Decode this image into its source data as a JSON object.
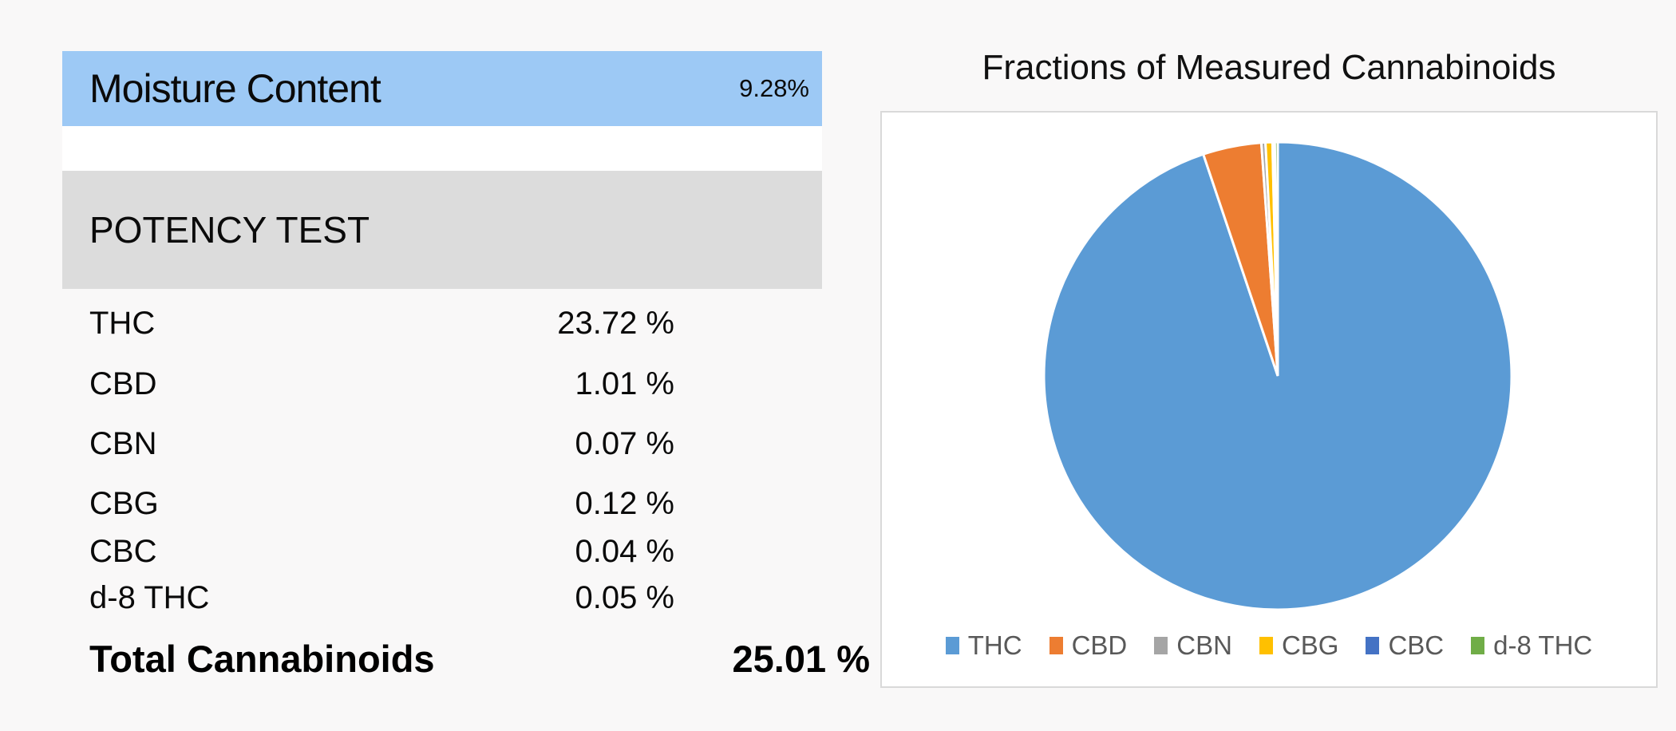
{
  "page": {
    "background": "#f9f8f8"
  },
  "moisture": {
    "label": "Moisture Content",
    "value": "9.28%",
    "bg": "#9dc9f5"
  },
  "potency": {
    "header": "POTENCY TEST",
    "bg": "#dcdcdc",
    "rows": [
      {
        "label": "THC",
        "value": "23.72 %"
      },
      {
        "label": "CBD",
        "value": "1.01 %"
      },
      {
        "label": "CBN",
        "value": "0.07 %"
      },
      {
        "label": "CBG",
        "value": "0.12 %"
      },
      {
        "label": "CBC",
        "value": "0.04 %"
      },
      {
        "label": "d-8 THC",
        "value": "0.05 %"
      }
    ],
    "total": {
      "label": "Total Cannabinoids",
      "value": "25.01 %"
    }
  },
  "chart_data": {
    "type": "pie",
    "title": "Fractions of Measured Cannabinoids",
    "categories": [
      "THC",
      "CBD",
      "CBN",
      "CBG",
      "CBC",
      "d-8 THC"
    ],
    "values": [
      23.72,
      1.01,
      0.07,
      0.12,
      0.04,
      0.05
    ],
    "fractions_pct": [
      94.84,
      4.04,
      0.28,
      0.48,
      0.16,
      0.2
    ],
    "colors": [
      "#5b9bd5",
      "#ed7d31",
      "#a5a5a5",
      "#ffc000",
      "#4472c4",
      "#70ad47"
    ],
    "slice_border_color": "#ffffff",
    "legend_position": "bottom",
    "legend_text_color": "#595959",
    "start_angle_deg": 0,
    "direction": "clockwise"
  }
}
